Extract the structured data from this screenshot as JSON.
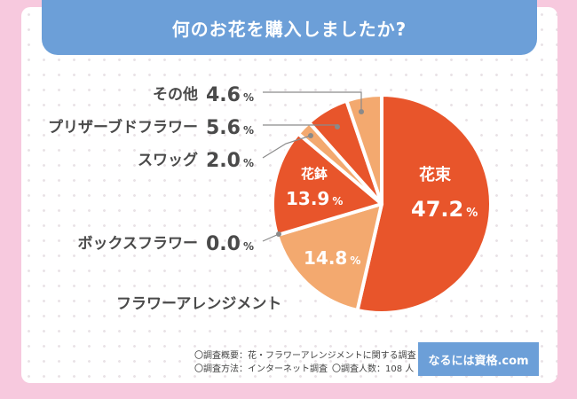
{
  "header": {
    "title": "何のお花を購入しましたか?"
  },
  "chart_data": {
    "type": "pie",
    "title": "何のお花を購入しましたか?",
    "slices": [
      {
        "name": "花束",
        "value": 47.2,
        "color": "#e8552b"
      },
      {
        "name": "フラワーアレンジメント",
        "value": 14.8,
        "color": "#f3a96f"
      },
      {
        "name": "ボックスフラワー",
        "value": 0.0,
        "color": "#f3a96f"
      },
      {
        "name": "花鉢",
        "value": 13.9,
        "color": "#e8552b"
      },
      {
        "name": "スワッグ",
        "value": 2.0,
        "color": "#f3a96f"
      },
      {
        "name": "プリザーブドフラワー",
        "value": 5.6,
        "color": "#e8552b"
      },
      {
        "name": "その他",
        "value": 4.6,
        "color": "#f3a96f"
      }
    ],
    "value_labels": {
      "花束": "47.2",
      "フラワーアレンジメント": "14.8",
      "ボックスフラワー": "0.0",
      "花鉢": "13.9",
      "スワッグ": "2.0",
      "プリザーブドフラワー": "5.6",
      "その他": "4.6"
    },
    "unit": "%"
  },
  "footnotes": {
    "summary": "〇調査概要：花・フラワーアレンジメントに関する調査",
    "method": "〇調査方法：インターネット調査",
    "respondents": "〇調査人数：108 人"
  },
  "badge": "なるには資格.com"
}
